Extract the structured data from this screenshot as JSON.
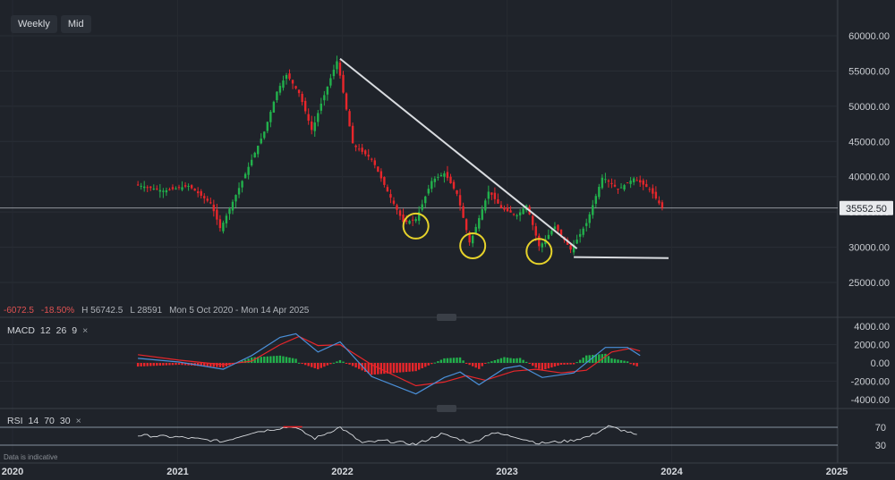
{
  "toolbar": {
    "timeframe": "Weekly",
    "price_type": "Mid"
  },
  "legend": {
    "change": "-6072.5",
    "change_pct": "-18.50%",
    "high": "H 56742.5",
    "low": "L 28591",
    "range": "Mon 5 Oct 2020 - Mon 14 Apr 2025"
  },
  "current_price_label": "35552.50",
  "macd": {
    "name": "MACD",
    "fast": "12",
    "slow": "26",
    "signal": "9",
    "close": "×"
  },
  "rsi": {
    "name": "RSI",
    "period": "14",
    "upper": "70",
    "lower": "30",
    "close": "×"
  },
  "disclaimer": "Data is indicative",
  "colors": {
    "up": "#22b14c",
    "down": "#e8262b",
    "bg": "#1f232a",
    "trendline": "#d9dce0",
    "highlight": "#e6d22a",
    "macd_line": "#4a90d9",
    "signal_line": "#e8262b",
    "rsi_line": "#d9dce0"
  },
  "chart_data": {
    "type": "candlestick",
    "price_axis": {
      "ticks": [
        60000,
        55000,
        50000,
        45000,
        40000,
        35000,
        30000,
        25000
      ],
      "tick_labels": [
        "60000.00",
        "55000.00",
        "50000.00",
        "45000.00",
        "40000.00",
        "35000.00",
        "30000.00",
        "25000.00"
      ],
      "range": [
        22000,
        62000
      ]
    },
    "time_axis": {
      "labels": [
        "2020",
        "2021",
        "2022",
        "2023",
        "2024",
        "2025"
      ]
    },
    "current_price": 35552.5,
    "trendline": [
      {
        "date": "2021-12-27",
        "value": 56742.5
      },
      {
        "date": "2023-06-05",
        "value": 29800
      }
    ],
    "support_line": [
      {
        "date": "2023-05-29",
        "value": 28591
      },
      {
        "date": "2023-12-25",
        "value": 28450
      }
    ],
    "highlighted_lows": [
      {
        "date": "2022-06-13",
        "value": 33000
      },
      {
        "date": "2022-10-17",
        "value": 30200
      },
      {
        "date": "2023-03-13",
        "value": 29400
      }
    ],
    "price_path": [
      {
        "date": "2020-10-05",
        "value": 38900
      },
      {
        "date": "2020-12-07",
        "value": 38000
      },
      {
        "date": "2021-02-01",
        "value": 38700
      },
      {
        "date": "2021-03-22",
        "value": 36200
      },
      {
        "date": "2021-04-12",
        "value": 32600
      },
      {
        "date": "2021-05-24",
        "value": 38500
      },
      {
        "date": "2021-07-19",
        "value": 46500
      },
      {
        "date": "2021-08-16",
        "value": 52200
      },
      {
        "date": "2021-09-06",
        "value": 54500
      },
      {
        "date": "2021-10-04",
        "value": 51800
      },
      {
        "date": "2021-11-01",
        "value": 46500
      },
      {
        "date": "2021-11-22",
        "value": 50500
      },
      {
        "date": "2021-12-27",
        "value": 56500
      },
      {
        "date": "2022-01-31",
        "value": 44500
      },
      {
        "date": "2022-03-14",
        "value": 42500
      },
      {
        "date": "2022-04-18",
        "value": 37800
      },
      {
        "date": "2022-05-23",
        "value": 33500
      },
      {
        "date": "2022-06-20",
        "value": 34000
      },
      {
        "date": "2022-07-25",
        "value": 39500
      },
      {
        "date": "2022-08-22",
        "value": 40500
      },
      {
        "date": "2022-09-19",
        "value": 37500
      },
      {
        "date": "2022-10-17",
        "value": 30500
      },
      {
        "date": "2022-11-28",
        "value": 38000
      },
      {
        "date": "2022-12-26",
        "value": 35500
      },
      {
        "date": "2023-01-30",
        "value": 34500
      },
      {
        "date": "2023-02-20",
        "value": 36000
      },
      {
        "date": "2023-03-20",
        "value": 30000
      },
      {
        "date": "2023-04-24",
        "value": 33000
      },
      {
        "date": "2023-05-29",
        "value": 29600
      },
      {
        "date": "2023-07-03",
        "value": 33500
      },
      {
        "date": "2023-08-07",
        "value": 40000
      },
      {
        "date": "2023-09-11",
        "value": 38200
      },
      {
        "date": "2023-10-16",
        "value": 39800
      },
      {
        "date": "2023-11-20",
        "value": 38200
      },
      {
        "date": "2023-12-18",
        "value": 35500
      }
    ],
    "macd": {
      "axis_ticks": [
        4000,
        2000,
        0,
        -2000,
        -4000
      ],
      "tick_labels": [
        "4000.00",
        "2000.00",
        "0.00",
        "-2000.00",
        "-4000.00"
      ],
      "macd_line": [
        {
          "date": "2020-10-05",
          "value": 500
        },
        {
          "date": "2021-01-04",
          "value": 100
        },
        {
          "date": "2021-04-12",
          "value": -700
        },
        {
          "date": "2021-06-14",
          "value": 800
        },
        {
          "date": "2021-08-16",
          "value": 2800
        },
        {
          "date": "2021-09-20",
          "value": 3200
        },
        {
          "date": "2021-11-08",
          "value": 1200
        },
        {
          "date": "2021-12-27",
          "value": 2300
        },
        {
          "date": "2022-03-07",
          "value": -1500
        },
        {
          "date": "2022-06-13",
          "value": -3400
        },
        {
          "date": "2022-08-15",
          "value": -1600
        },
        {
          "date": "2022-09-19",
          "value": -1000
        },
        {
          "date": "2022-10-31",
          "value": -2400
        },
        {
          "date": "2022-12-26",
          "value": -600
        },
        {
          "date": "2023-01-30",
          "value": -300
        },
        {
          "date": "2023-03-20",
          "value": -1600
        },
        {
          "date": "2023-05-29",
          "value": -1100
        },
        {
          "date": "2023-08-07",
          "value": 1700
        },
        {
          "date": "2023-09-25",
          "value": 1700
        },
        {
          "date": "2023-10-23",
          "value": 800
        }
      ],
      "signal_line": [
        {
          "date": "2020-10-05",
          "value": 900
        },
        {
          "date": "2021-01-04",
          "value": 300
        },
        {
          "date": "2021-04-12",
          "value": -200
        },
        {
          "date": "2021-06-14",
          "value": 200
        },
        {
          "date": "2021-08-16",
          "value": 2000
        },
        {
          "date": "2021-09-27",
          "value": 2900
        },
        {
          "date": "2021-11-08",
          "value": 1900
        },
        {
          "date": "2021-12-27",
          "value": 2000
        },
        {
          "date": "2022-03-07",
          "value": -200
        },
        {
          "date": "2022-06-13",
          "value": -2500
        },
        {
          "date": "2022-08-15",
          "value": -2100
        },
        {
          "date": "2022-10-03",
          "value": -1400
        },
        {
          "date": "2022-11-14",
          "value": -1900
        },
        {
          "date": "2023-01-16",
          "value": -900
        },
        {
          "date": "2023-03-06",
          "value": -700
        },
        {
          "date": "2023-05-01",
          "value": -1100
        },
        {
          "date": "2023-06-26",
          "value": -800
        },
        {
          "date": "2023-08-21",
          "value": 1200
        },
        {
          "date": "2023-10-02",
          "value": 1600
        },
        {
          "date": "2023-10-23",
          "value": 1300
        }
      ]
    },
    "rsi_data": [
      {
        "date": "2020-10-05",
        "value": 52
      },
      {
        "date": "2021-01-04",
        "value": 48
      },
      {
        "date": "2021-04-12",
        "value": 38
      },
      {
        "date": "2021-06-14",
        "value": 58
      },
      {
        "date": "2021-08-16",
        "value": 68
      },
      {
        "date": "2021-09-13",
        "value": 72
      },
      {
        "date": "2021-11-01",
        "value": 45
      },
      {
        "date": "2021-12-27",
        "value": 70
      },
      {
        "date": "2022-02-14",
        "value": 35
      },
      {
        "date": "2022-04-04",
        "value": 40
      },
      {
        "date": "2022-06-13",
        "value": 32
      },
      {
        "date": "2022-08-08",
        "value": 55
      },
      {
        "date": "2022-10-17",
        "value": 35
      },
      {
        "date": "2022-11-28",
        "value": 58
      },
      {
        "date": "2023-01-23",
        "value": 48
      },
      {
        "date": "2023-03-13",
        "value": 34
      },
      {
        "date": "2023-05-22",
        "value": 40
      },
      {
        "date": "2023-07-03",
        "value": 50
      },
      {
        "date": "2023-08-14",
        "value": 72
      },
      {
        "date": "2023-09-25",
        "value": 60
      },
      {
        "date": "2023-10-23",
        "value": 48
      }
    ]
  }
}
